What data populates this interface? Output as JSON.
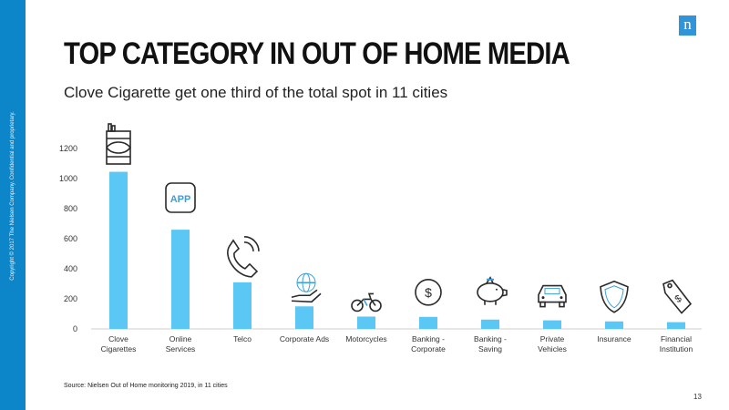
{
  "slide": {
    "title": "TOP CATEGORY IN OUT OF HOME MEDIA",
    "subtitle": "Clove Cigarette get one third of the total spot in 11 cities",
    "source": "Source: Nielsen Out of Home monitoring 2019, in 11 cities",
    "page_number": "13",
    "copyright": "Copyright © 2017 The Nielsen Company. Confidential and proprietary.",
    "logo_letter": "n",
    "colors": {
      "bar": "#5bc7f5",
      "sidebar": "#0c86c8",
      "logo": "#2f95d8"
    }
  },
  "chart_data": {
    "type": "bar",
    "categories": [
      [
        "Clove",
        "Cigarettes"
      ],
      [
        "Online",
        "Services"
      ],
      [
        "Telco"
      ],
      [
        "Corporate Ads"
      ],
      [
        "Motorcycles"
      ],
      [
        "Banking -",
        "Corporate"
      ],
      [
        "Banking -",
        "Saving"
      ],
      [
        "Private",
        "Vehicles"
      ],
      [
        "Insurance"
      ],
      [
        "Financial",
        "Institution"
      ]
    ],
    "values": [
      1045,
      660,
      310,
      150,
      82,
      80,
      62,
      57,
      50,
      45
    ],
    "ylim": [
      0,
      1200
    ],
    "yticks": [
      0,
      200,
      400,
      600,
      800,
      1000,
      1200
    ],
    "grid": false,
    "icons": [
      "cigarette-pack-icon",
      "app-icon",
      "phone-icon",
      "globe-hand-icon",
      "motorcycle-icon",
      "dollar-coin-icon",
      "piggy-bank-icon",
      "car-icon",
      "shield-icon",
      "price-tag-icon"
    ],
    "app_icon_text": "APP",
    "coin_symbol": "$"
  }
}
